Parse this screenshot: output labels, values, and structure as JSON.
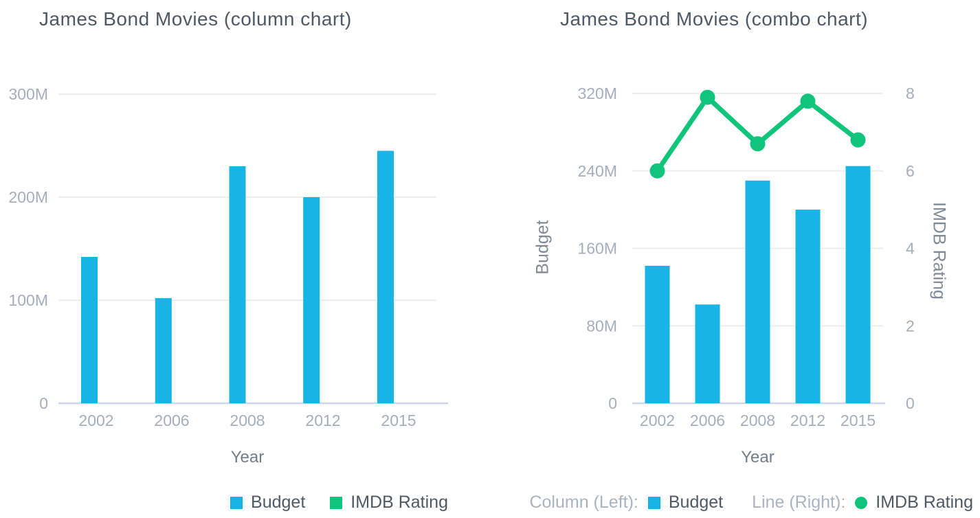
{
  "page": {
    "background": "#ffffff"
  },
  "colors": {
    "budget_blue": "#18b4e6",
    "imdb_green": "#10c47c",
    "title_text": "#4d5a66",
    "tick_text": "#a5aebc",
    "axis_title_text": "#6f7d89",
    "gridline": "#ededed",
    "axis_line": "#ccd6e6",
    "legend_text": "#4d5a66",
    "legend_muted_text": "#a9b4c2"
  },
  "chart_data": [
    {
      "type": "bar",
      "title": "James Bond Movies (column chart)",
      "xlabel": "Year",
      "categories": [
        "2002",
        "2006",
        "2008",
        "2012",
        "2015"
      ],
      "series": [
        {
          "name": "Budget",
          "type": "column",
          "color": "#18b4e6",
          "values": [
            142,
            102,
            230,
            200,
            245
          ],
          "unit": "M"
        },
        {
          "name": "IMDB Rating",
          "type": "column",
          "color": "#10c47c",
          "values": [
            6.0,
            7.9,
            6.7,
            7.8,
            6.8
          ]
        }
      ],
      "y_axis": {
        "ticks": [
          "0",
          "100M",
          "200M",
          "300M"
        ],
        "tick_values": [
          0,
          100,
          200,
          300
        ],
        "max": 300,
        "ylim": [
          0,
          300
        ],
        "grid": true
      },
      "legend_position": "bottom-right",
      "legend": [
        {
          "label": "Budget",
          "swatch": "square",
          "color": "#18b4e6"
        },
        {
          "label": "IMDB Rating",
          "swatch": "square",
          "color": "#10c47c"
        }
      ]
    },
    {
      "type": "combo",
      "title": "James Bond Movies (combo chart)",
      "xlabel": "Year",
      "categories": [
        "2002",
        "2006",
        "2008",
        "2012",
        "2015"
      ],
      "series": [
        {
          "name": "Budget",
          "type": "column",
          "axis": "left",
          "color": "#18b4e6",
          "values": [
            142,
            102,
            230,
            200,
            245
          ],
          "unit": "M"
        },
        {
          "name": "IMDB Rating",
          "type": "line",
          "axis": "right",
          "color": "#10c47c",
          "values": [
            6.0,
            7.9,
            6.7,
            7.8,
            6.8
          ]
        }
      ],
      "y_axis_left": {
        "title": "Budget",
        "ticks": [
          "0",
          "80M",
          "160M",
          "240M",
          "320M"
        ],
        "tick_values": [
          0,
          80,
          160,
          240,
          320
        ],
        "max": 320,
        "ylim": [
          0,
          320
        ],
        "grid": true
      },
      "y_axis_right": {
        "title": "IMDB Rating",
        "ticks": [
          "0",
          "2",
          "4",
          "6",
          "8"
        ],
        "tick_values": [
          0,
          2,
          4,
          6,
          8
        ],
        "max": 8,
        "ylim": [
          0,
          8
        ]
      },
      "legend_position": "bottom-right",
      "legend": [
        {
          "prefix": "Column (Left):",
          "label": "Budget",
          "swatch": "square",
          "color": "#18b4e6"
        },
        {
          "prefix": "Line (Right):",
          "label": "IMDB Rating",
          "swatch": "circle",
          "color": "#10c47c"
        }
      ]
    }
  ]
}
